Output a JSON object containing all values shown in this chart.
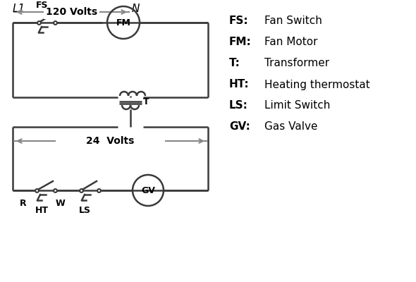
{
  "bg_color": "#ffffff",
  "line_color": "#3a3a3a",
  "arrow_color": "#888888",
  "text_color": "#000000",
  "legend_items": [
    [
      "FS:",
      "Fan Switch"
    ],
    [
      "FM:",
      "Fan Motor"
    ],
    [
      "T:",
      "Transformer"
    ],
    [
      "HT:",
      "Heating thermostat"
    ],
    [
      "LS:",
      "Limit Switch"
    ],
    [
      "GV:",
      "Gas Valve"
    ]
  ],
  "label_L1": "L1",
  "label_N": "N",
  "voltage_120": "120 Volts",
  "voltage_24": "24  Volts"
}
